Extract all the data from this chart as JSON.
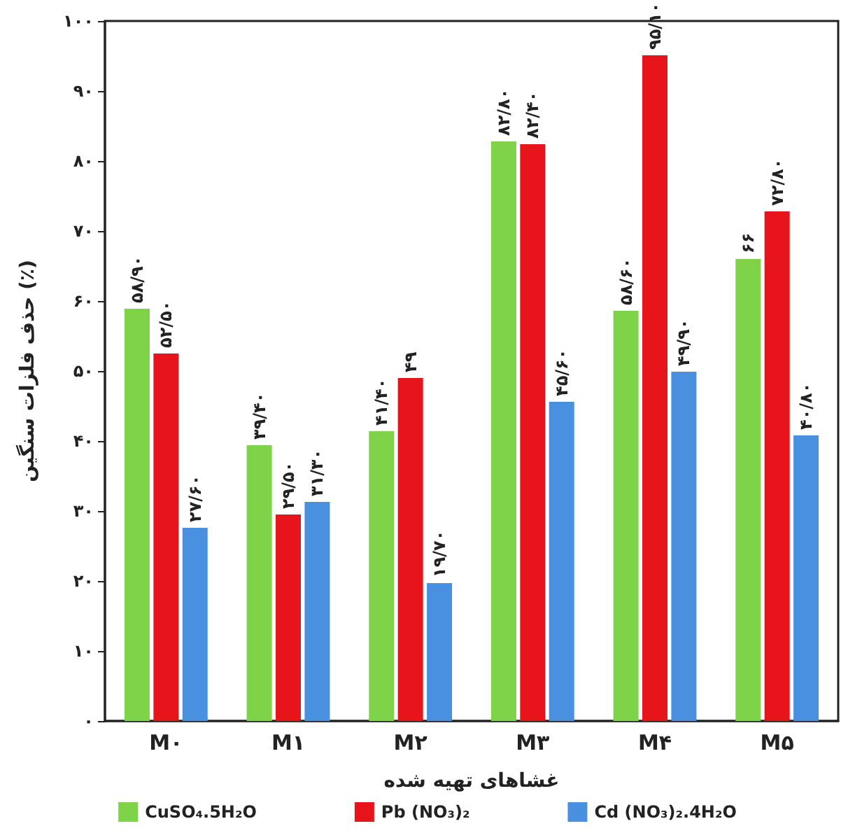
{
  "chart_data": {
    "type": "bar",
    "xlabel": "غشاهای تهیه شده",
    "ylabel": "حذف فلزات سنگین (٪)",
    "categories": [
      "M۰",
      "M۱",
      "M۲",
      "M۳",
      "M۴",
      "M۵"
    ],
    "series": [
      {
        "name": "CuSO₄.5H₂O",
        "color": "#7ed348",
        "values": [
          58.9,
          39.4,
          41.4,
          82.8,
          58.6,
          66
        ],
        "value_labels": [
          "۵۸/۹۰",
          "۳۹/۴۰",
          "۴۱/۴۰",
          "۸۲/۸۰",
          "۵۸/۶۰",
          "۶۶"
        ]
      },
      {
        "name": "Pb (NO₃)₂",
        "color": "#e8141b",
        "values": [
          52.5,
          29.5,
          49,
          82.4,
          95.1,
          72.8
        ],
        "value_labels": [
          "۵۲/۵۰",
          "۲۹/۵۰",
          "۴۹",
          "۸۲/۴۰",
          "۹۵/۱۰",
          "۷۲/۸۰"
        ]
      },
      {
        "name": "Cd (NO₃)₂.4H₂O",
        "color": "#4a90e0",
        "values": [
          27.6,
          31.3,
          19.7,
          45.6,
          49.9,
          40.8
        ],
        "value_labels": [
          "۲۷/۶۰",
          "۳۱/۳۰",
          "۱۹/۷۰",
          "۴۵/۶۰",
          "۴۹/۹۰",
          "۴۰/۸۰"
        ]
      }
    ],
    "ylim": [
      0,
      100
    ],
    "yticks": [
      {
        "value": 0,
        "label": "۰"
      },
      {
        "value": 10,
        "label": "۱۰"
      },
      {
        "value": 20,
        "label": "۲۰"
      },
      {
        "value": 30,
        "label": "۳۰"
      },
      {
        "value": 40,
        "label": "۴۰"
      },
      {
        "value": 50,
        "label": "۵۰"
      },
      {
        "value": 60,
        "label": "۶۰"
      },
      {
        "value": 70,
        "label": "۷۰"
      },
      {
        "value": 80,
        "label": "۸۰"
      },
      {
        "value": 90,
        "label": "۹۰"
      },
      {
        "value": 100,
        "label": "۱۰۰"
      }
    ],
    "legend": "bottom"
  }
}
